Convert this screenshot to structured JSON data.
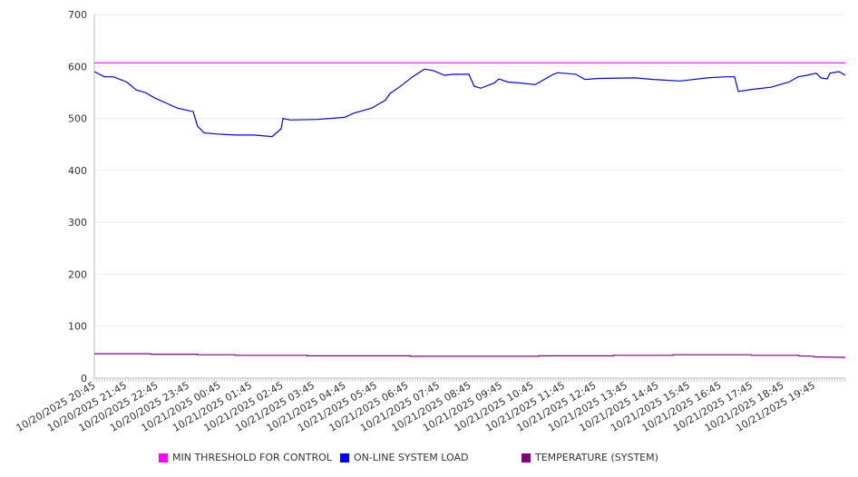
{
  "chart_data": {
    "type": "line",
    "title": "",
    "xlabel": "",
    "ylabel": "",
    "ylim": [
      0,
      700
    ],
    "yticks": [
      "0",
      "100",
      "200",
      "300",
      "400",
      "500",
      "600",
      "700"
    ],
    "xticks": [
      "10/20/2025 20:45",
      "10/20/2025 21:45",
      "10/20/2025 22:45",
      "10/20/2025 23:45",
      "10/21/2025 00:45",
      "10/21/2025 01:45",
      "10/21/2025 02:45",
      "10/21/2025 03:45",
      "10/21/2025 04:45",
      "10/21/2025 05:45",
      "10/21/2025 06:45",
      "10/21/2025 07:45",
      "10/21/2025 08:45",
      "10/21/2025 09:45",
      "10/21/2025 10:45",
      "10/21/2025 11:45",
      "10/21/2025 12:45",
      "10/21/2025 13:45",
      "10/21/2025 14:45",
      "10/21/2025 15:45",
      "10/21/2025 16:45",
      "10/21/2025 17:45",
      "10/21/2025 18:45",
      "10/21/2025 19:45"
    ],
    "x_unit": "hours since 10/20/2025 20:45",
    "xlim": [
      0,
      24
    ],
    "grid": true,
    "legend_position": "bottom",
    "series": [
      {
        "name": "MIN THRESHOLD FOR CONTROL",
        "color": "#ff00ff",
        "points": [
          [
            0,
            607
          ],
          [
            24,
            607
          ]
        ]
      },
      {
        "name": "ON-LINE SYSTEM LOAD",
        "color": "#0000ff",
        "points": [
          [
            0,
            590
          ],
          [
            0.32,
            580
          ],
          [
            0.61,
            580
          ],
          [
            1.04,
            570
          ],
          [
            1.33,
            555
          ],
          [
            1.62,
            550
          ],
          [
            1.91,
            540
          ],
          [
            2.35,
            528
          ],
          [
            2.64,
            520
          ],
          [
            3.16,
            513
          ],
          [
            3.3,
            485
          ],
          [
            3.51,
            472
          ],
          [
            3.94,
            470
          ],
          [
            4.52,
            468
          ],
          [
            5.1,
            468
          ],
          [
            5.68,
            465
          ],
          [
            5.97,
            480
          ],
          [
            6.03,
            500
          ],
          [
            6.26,
            497
          ],
          [
            7.13,
            498
          ],
          [
            8.0,
            502
          ],
          [
            8.29,
            510
          ],
          [
            8.87,
            520
          ],
          [
            9.3,
            535
          ],
          [
            9.45,
            548
          ],
          [
            9.74,
            560
          ],
          [
            10.17,
            580
          ],
          [
            10.55,
            595
          ],
          [
            10.84,
            592
          ],
          [
            11.19,
            583
          ],
          [
            11.48,
            585
          ],
          [
            11.97,
            585
          ],
          [
            12.14,
            562
          ],
          [
            12.35,
            558
          ],
          [
            12.78,
            568
          ],
          [
            12.93,
            576
          ],
          [
            13.22,
            570
          ],
          [
            13.65,
            568
          ],
          [
            14.09,
            565
          ],
          [
            14.38,
            575
          ],
          [
            14.67,
            585
          ],
          [
            14.81,
            588
          ],
          [
            15.39,
            585
          ],
          [
            15.68,
            575
          ],
          [
            16.12,
            577
          ],
          [
            17.28,
            578
          ],
          [
            17.86,
            575
          ],
          [
            18.72,
            572
          ],
          [
            19.59,
            578
          ],
          [
            20.17,
            580
          ],
          [
            20.46,
            580
          ],
          [
            20.58,
            552
          ],
          [
            21.04,
            556
          ],
          [
            21.62,
            560
          ],
          [
            22.2,
            570
          ],
          [
            22.49,
            580
          ],
          [
            22.78,
            583
          ],
          [
            23.07,
            587
          ],
          [
            23.22,
            578
          ],
          [
            23.42,
            576
          ],
          [
            23.51,
            587
          ],
          [
            23.8,
            590
          ],
          [
            24.0,
            583
          ]
        ]
      },
      {
        "name": "TEMPERATURE (SYSTEM)",
        "color": "#800080",
        "points": [
          [
            0,
            47
          ],
          [
            1.8,
            47
          ],
          [
            1.8,
            46
          ],
          [
            3.3,
            46
          ],
          [
            3.3,
            45
          ],
          [
            4.5,
            45
          ],
          [
            4.5,
            44
          ],
          [
            6.8,
            44
          ],
          [
            6.8,
            43
          ],
          [
            10.1,
            43
          ],
          [
            10.1,
            42
          ],
          [
            14.2,
            42
          ],
          [
            14.2,
            43
          ],
          [
            16.6,
            43
          ],
          [
            16.6,
            44
          ],
          [
            18.5,
            44
          ],
          [
            18.5,
            45
          ],
          [
            21.0,
            45
          ],
          [
            21.0,
            44
          ],
          [
            22.5,
            44
          ],
          [
            22.5,
            43
          ],
          [
            23.0,
            42
          ],
          [
            23.0,
            41
          ],
          [
            24,
            40
          ]
        ]
      }
    ]
  }
}
